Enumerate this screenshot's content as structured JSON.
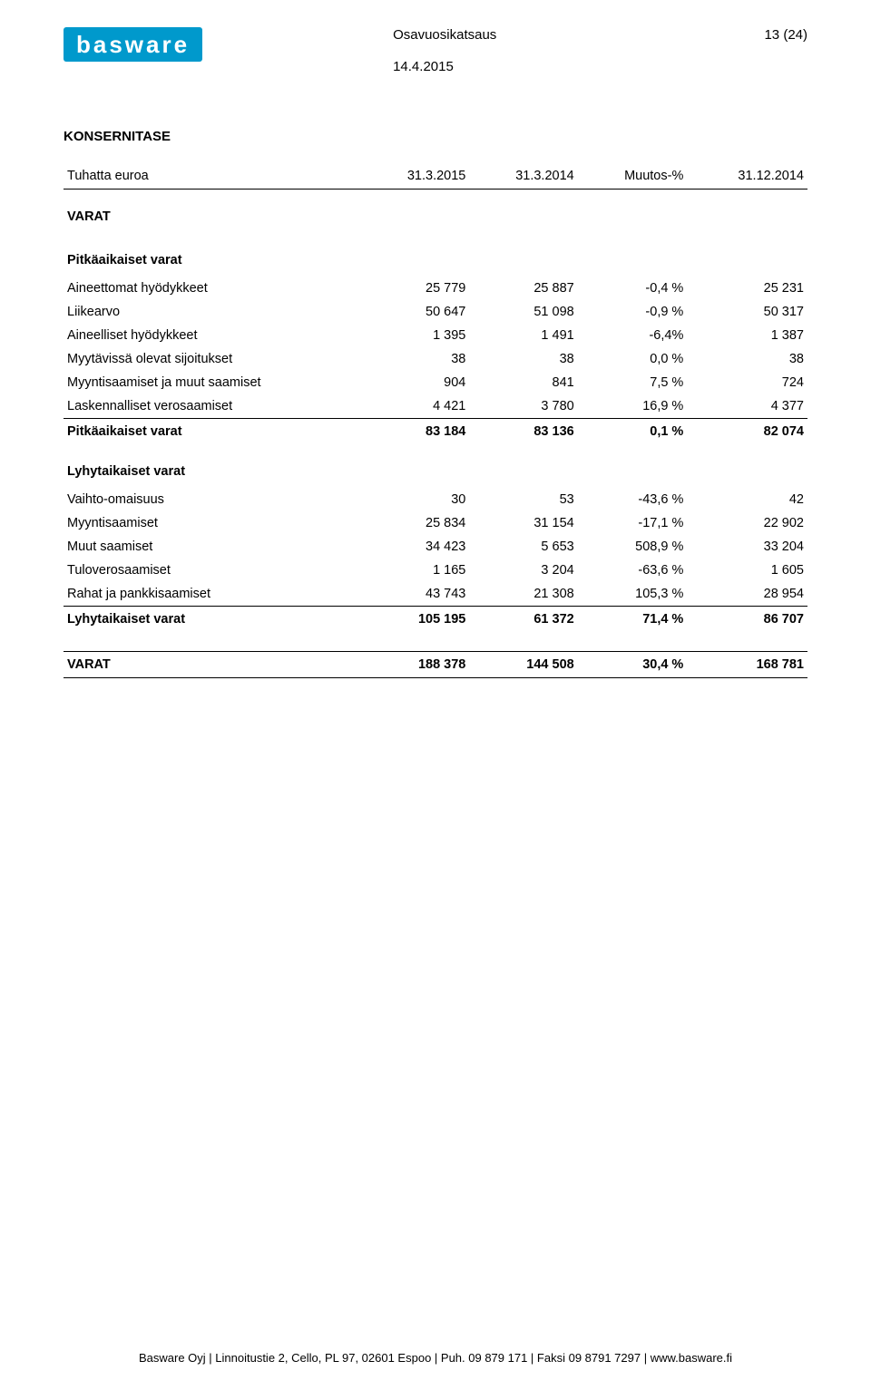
{
  "header": {
    "title": "Osavuosikatsaus",
    "date": "14.4.2015",
    "page": "13 (24)"
  },
  "logo": {
    "text": "basware"
  },
  "section_title": "KONSERNITASE",
  "columns": {
    "c0": "Tuhatta euroa",
    "c1": "31.3.2015",
    "c2": "31.3.2014",
    "c3": "Muutos-%",
    "c4": "31.12.2014"
  },
  "groups": [
    {
      "heading": "VARAT"
    },
    {
      "heading": "Pitkäaikaiset varat",
      "rows": [
        {
          "label": "Aineettomat hyödykkeet",
          "c1": "25 779",
          "c2": "25 887",
          "c3": "-0,4 %",
          "c4": "25 231"
        },
        {
          "label": "Liikearvo",
          "c1": "50 647",
          "c2": "51 098",
          "c3": "-0,9 %",
          "c4": "50 317"
        },
        {
          "label": "Aineelliset hyödykkeet",
          "c1": "1 395",
          "c2": "1 491",
          "c3": "-6,4%",
          "c4": "1 387"
        },
        {
          "label": "Myytävissä olevat sijoitukset",
          "c1": "38",
          "c2": "38",
          "c3": "0,0 %",
          "c4": "38"
        },
        {
          "label": "Myyntisaamiset ja muut saamiset",
          "c1": "904",
          "c2": "841",
          "c3": "7,5 %",
          "c4": "724"
        },
        {
          "label": "Laskennalliset verosaamiset",
          "c1": "4 421",
          "c2": "3 780",
          "c3": "16,9 %",
          "c4": "4 377"
        }
      ],
      "subtotal": {
        "label": "Pitkäaikaiset varat",
        "c1": "83 184",
        "c2": "83 136",
        "c3": "0,1 %",
        "c4": "82 074"
      }
    },
    {
      "heading": "Lyhytaikaiset varat",
      "rows": [
        {
          "label": "Vaihto-omaisuus",
          "c1": "30",
          "c2": "53",
          "c3": "-43,6 %",
          "c4": "42"
        },
        {
          "label": "Myyntisaamiset",
          "c1": "25 834",
          "c2": "31 154",
          "c3": "-17,1 %",
          "c4": "22 902"
        },
        {
          "label": "Muut saamiset",
          "c1": "34 423",
          "c2": "5 653",
          "c3": "508,9 %",
          "c4": "33 204"
        },
        {
          "label": "Tuloverosaamiset",
          "c1": "1 165",
          "c2": "3 204",
          "c3": "-63,6 %",
          "c4": "1 605"
        },
        {
          "label": "Rahat ja pankkisaamiset",
          "c1": "43 743",
          "c2": "21 308",
          "c3": "105,3 %",
          "c4": "28 954"
        }
      ],
      "subtotal": {
        "label": "Lyhytaikaiset varat",
        "c1": "105 195",
        "c2": "61 372",
        "c3": "71,4 %",
        "c4": "86 707"
      }
    }
  ],
  "grandtotal": {
    "label": "VARAT",
    "c1": "188 378",
    "c2": "144 508",
    "c3": "30,4 %",
    "c4": "168 781"
  },
  "footer": "Basware Oyj | Linnoitustie 2, Cello, PL 97, 02601 Espoo | Puh. 09 879 171 | Faksi 09  8791 7297 | www.basware.fi"
}
